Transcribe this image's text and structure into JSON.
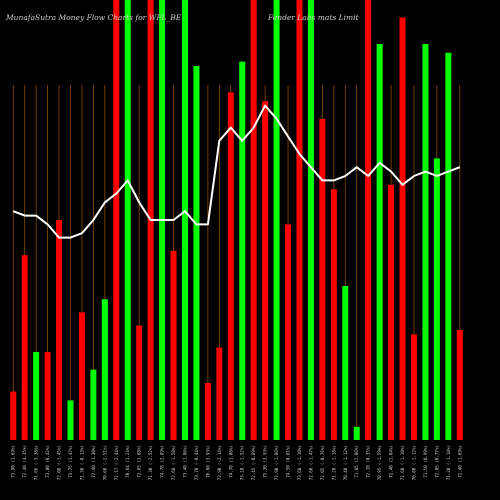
{
  "chart_data": {
    "type": "bar",
    "title": "MunafaSutra  Money Flow  Charts for WFL_BE",
    "title_right": "Fender Labs mats Limit",
    "colors": {
      "background": "#000000",
      "up": "#00ff00",
      "down": "#ff0000",
      "grid": "#8b4a00",
      "line": "#ffffff"
    },
    "ylim": [
      0,
      100
    ],
    "categories": [
      "73.90 (1.69%)",
      "72.40 (4.35%)",
      "71.66 (-3.38%)",
      "73.00 (0.42%)",
      "72.08 (-1.45%)",
      "73.75 (1.47%)",
      "71.38 (-0.13%)",
      "72.40 (1.30%)",
      "70.60 (-2.51%)",
      "72.17 (-2.44%)",
      "70.64 (1.24%)",
      "72.65 (2.68%)",
      "71.30 (-2.52%)",
      "74.78 (2.89%)",
      "72.68 (-1.58%)",
      "73.40 (1.06%)",
      "73.70 (-0.44%)",
      "76.60 (3.93%)",
      "73.90 (-2.14%)",
      "74.70 (1.08%)",
      "73.10 (-1.52%)",
      "72.45 (-0.89%)",
      "75.30 (3.93%)",
      "73.90 (-1.86%)",
      "74.50 (0.81%)",
      "73.68 (-1.10%)",
      "72.60 (-1.47%)",
      "72.05 (-0.76%)",
      "71.20 (-1.18%)",
      "70.40 (-1.12%)",
      "71.85 (2.06%)",
      "72.10 (0.35%)",
      "70.95 (-1.59%)",
      "72.40 (2.04%)",
      "71.60 (-1.10%)",
      "70.80 (-1.12%)",
      "71.50 (0.99%)",
      "72.05 (0.77%)",
      "71.20 (-1.18%)",
      "72.40 (1.69%)"
    ],
    "series": [
      {
        "values": [
          11,
          42,
          20,
          20,
          50,
          9,
          29,
          16,
          32,
          100,
          100,
          26,
          100,
          100,
          43,
          100,
          85,
          13,
          21,
          79,
          86,
          100,
          77,
          100,
          49,
          100,
          100,
          73,
          57,
          35,
          3,
          100,
          90,
          58,
          96,
          24,
          90,
          64,
          88,
          25
        ],
        "colors": [
          "down",
          "down",
          "up",
          "down",
          "down",
          "up",
          "down",
          "up",
          "up",
          "down",
          "up",
          "down",
          "down",
          "up",
          "down",
          "up",
          "up",
          "down",
          "down",
          "down",
          "up",
          "down",
          "down",
          "up",
          "down",
          "down",
          "up",
          "down",
          "down",
          "up",
          "up",
          "down",
          "up",
          "down",
          "down",
          "down",
          "up",
          "up",
          "up",
          "down"
        ]
      },
      {
        "values": [
          52,
          51,
          51,
          49,
          46,
          46,
          47,
          50,
          54,
          56,
          59,
          54,
          50,
          50,
          50,
          52,
          49,
          49,
          68,
          71,
          68,
          71,
          76,
          73,
          69,
          65,
          62,
          59,
          59,
          60,
          62,
          60,
          63,
          61,
          58,
          60,
          61,
          60,
          61,
          62
        ]
      }
    ]
  }
}
